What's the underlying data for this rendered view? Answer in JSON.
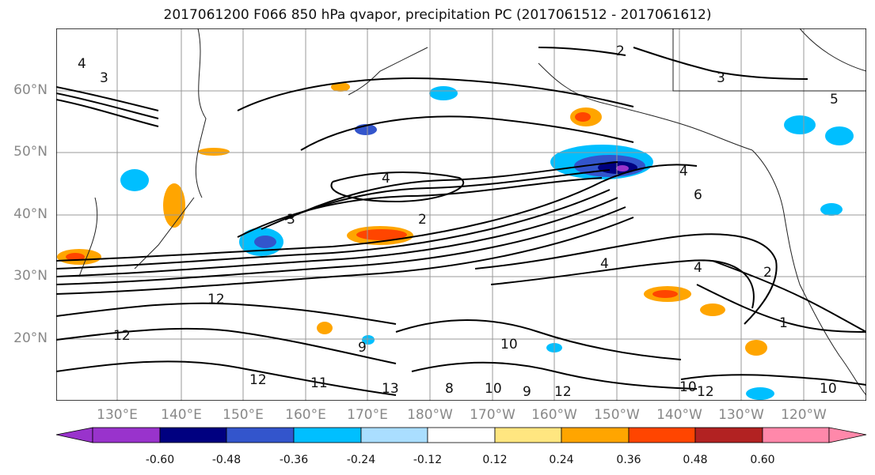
{
  "title": "2017061200 F066 850 hPa qvapor, precipitation PC (2017061512 - 2017061612)",
  "lat_labels": [
    "60°N",
    "50°N",
    "40°N",
    "30°N",
    "20°N"
  ],
  "lon_labels": [
    "130°E",
    "140°E",
    "150°E",
    "160°E",
    "170°E",
    "180°W",
    "170°W",
    "160°W",
    "150°W",
    "140°W",
    "130°W",
    "120°W"
  ],
  "colorbar": {
    "ticks": [
      "-0.60",
      "-0.48",
      "-0.36",
      "-0.24",
      "-0.12",
      "0.12",
      "0.24",
      "0.36",
      "0.48",
      "0.60"
    ],
    "colors": [
      "#9933cc",
      "#000080",
      "#3355cc",
      "#00bfff",
      "#aadeff",
      "#ffffff",
      "#ffe680",
      "#ffa500",
      "#ff4500",
      "#b22222",
      "#ff88aa"
    ]
  },
  "contour_labels": [
    {
      "text": "4"
    },
    {
      "text": "3"
    },
    {
      "text": "2"
    },
    {
      "text": "5"
    },
    {
      "text": "6"
    },
    {
      "text": "12"
    },
    {
      "text": "11"
    },
    {
      "text": "10"
    },
    {
      "text": "13"
    },
    {
      "text": "9"
    },
    {
      "text": "1"
    },
    {
      "text": "8"
    }
  ]
}
